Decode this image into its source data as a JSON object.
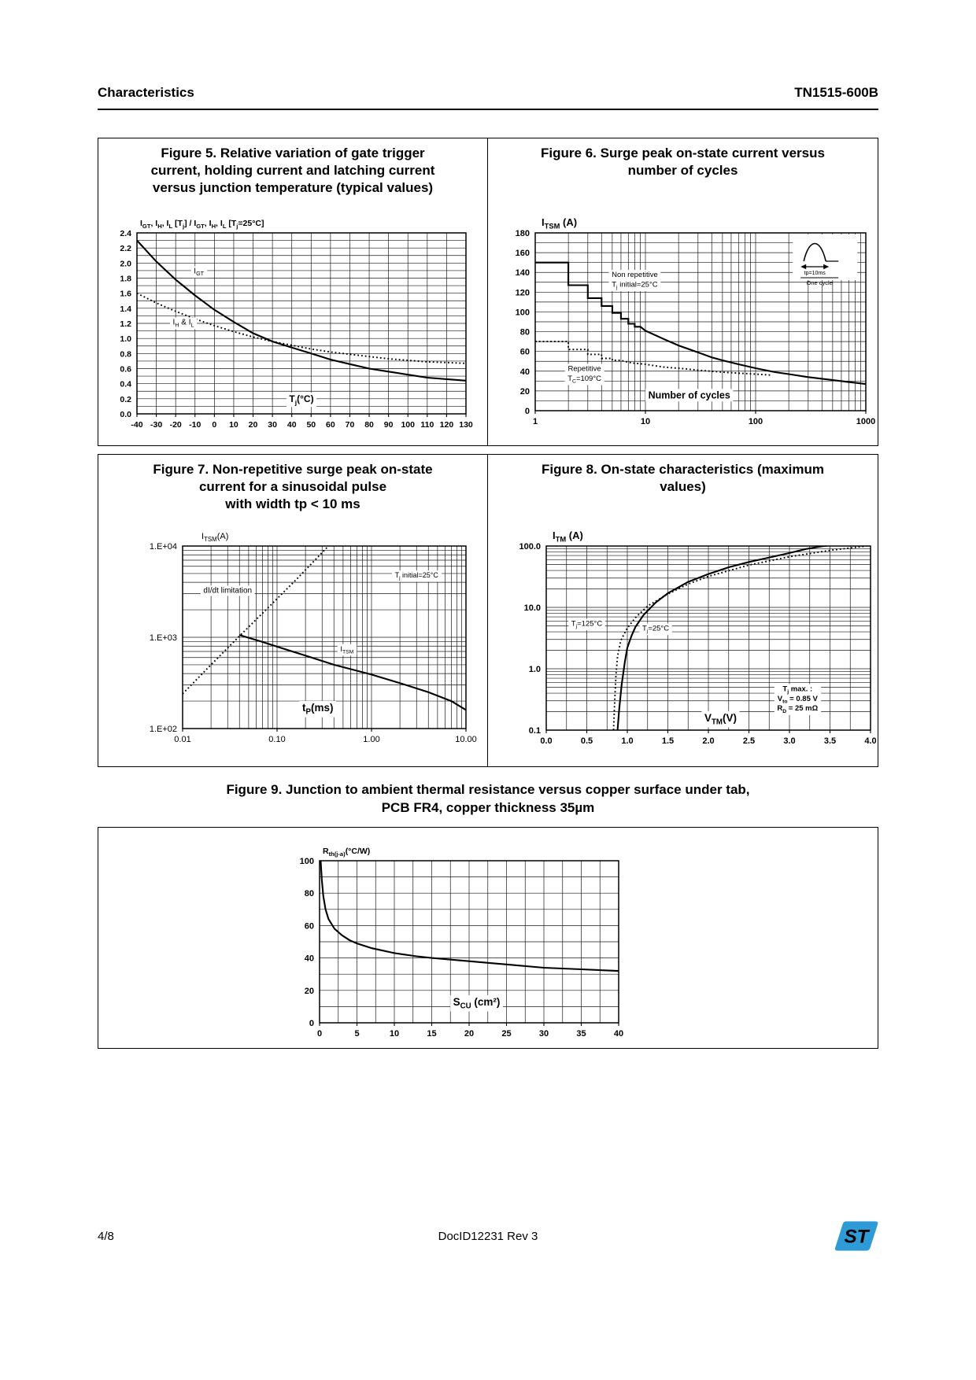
{
  "page": {
    "header": {
      "section": "Characteristics",
      "part_number": "TN1515-600B"
    },
    "footer": {
      "page_number": "4/8",
      "doc_id": "DocID12231 Rev 3",
      "logo_text": "ST",
      "logo_color": "#2E9BD6"
    }
  },
  "chart_data": [
    {
      "id": "fig5",
      "type": "line",
      "title": "Figure 5. Relative variation of gate trigger\ncurrent, holding current and latching current\nversus junction temperature (typical values)",
      "y_unit": "I_{GT}, I_{H}, I_{L} [T_{j}] / I_{GT}, I_{H}, I_{L} [T_{j}=25°C]",
      "x_axis": {
        "scale": "linear",
        "min": -40,
        "max": 130,
        "grid_step": 10,
        "ticks": [
          -40,
          -30,
          -20,
          -10,
          0,
          10,
          20,
          30,
          40,
          50,
          60,
          70,
          80,
          90,
          100,
          110,
          120,
          130
        ],
        "tick_labels": [
          "-40",
          "-30",
          "-20",
          "-10",
          "0",
          "10",
          "20",
          "30",
          "40",
          "50",
          "60",
          "70",
          "80",
          "90",
          "100",
          "110",
          "120",
          "130"
        ],
        "label": {
          "text": "T_{j}(°C)",
          "x": 45,
          "y": 0.2,
          "size": 12
        }
      },
      "y_axis": {
        "scale": "linear",
        "min": 0,
        "max": 2.4,
        "grid_step": 0.1,
        "ticks": [
          0,
          0.2,
          0.4,
          0.6,
          0.8,
          1.0,
          1.2,
          1.4,
          1.6,
          1.8,
          2.0,
          2.2,
          2.4
        ],
        "tick_labels": [
          "0.0",
          "0.2",
          "0.4",
          "0.6",
          "0.8",
          "1.0",
          "1.2",
          "1.4",
          "1.6",
          "1.8",
          "2.0",
          "2.2",
          "2.4"
        ]
      },
      "series": [
        {
          "name": "I_{GT}",
          "line": "solid",
          "points": [
            [
              -40,
              2.3
            ],
            [
              -30,
              2.02
            ],
            [
              -20,
              1.78
            ],
            [
              -10,
              1.57
            ],
            [
              0,
              1.38
            ],
            [
              10,
              1.22
            ],
            [
              20,
              1.07
            ],
            [
              30,
              0.96
            ],
            [
              40,
              0.88
            ],
            [
              50,
              0.8
            ],
            [
              60,
              0.72
            ],
            [
              70,
              0.66
            ],
            [
              80,
              0.6
            ],
            [
              90,
              0.56
            ],
            [
              100,
              0.52
            ],
            [
              110,
              0.48
            ],
            [
              120,
              0.46
            ],
            [
              130,
              0.44
            ]
          ]
        },
        {
          "name": "I_{H} & I_{L}",
          "line": "dotted",
          "points": [
            [
              -40,
              1.6
            ],
            [
              -30,
              1.47
            ],
            [
              -20,
              1.36
            ],
            [
              -10,
              1.26
            ],
            [
              0,
              1.17
            ],
            [
              10,
              1.09
            ],
            [
              20,
              1.02
            ],
            [
              30,
              0.96
            ],
            [
              40,
              0.91
            ],
            [
              50,
              0.86
            ],
            [
              60,
              0.82
            ],
            [
              70,
              0.79
            ],
            [
              80,
              0.76
            ],
            [
              90,
              0.73
            ],
            [
              100,
              0.71
            ],
            [
              110,
              0.69
            ],
            [
              120,
              0.68
            ],
            [
              130,
              0.67
            ]
          ]
        }
      ],
      "annotations": [
        {
          "x": -8,
          "y": 1.9,
          "lines": [
            "I_{GT}"
          ],
          "size": 10
        },
        {
          "x": -16,
          "y": 1.22,
          "lines": [
            "I_{H} & I_{L}"
          ],
          "size": 10
        }
      ]
    },
    {
      "id": "fig6",
      "type": "line",
      "title": "Figure 6. Surge peak on-state current versus\nnumber of cycles",
      "y_unit": "I_{TSM} (A)",
      "x_axis": {
        "scale": "log",
        "min": 1,
        "max": 1000,
        "ticks": [
          1,
          10,
          100,
          1000
        ],
        "tick_labels": [
          "1",
          "10",
          "100",
          "1000"
        ],
        "label": {
          "text": "Number of cycles",
          "x": 25,
          "y": 16,
          "size": 12.5
        }
      },
      "y_axis": {
        "scale": "linear",
        "min": 0,
        "max": 180,
        "grid_step": 10,
        "ticks": [
          0,
          20,
          40,
          60,
          80,
          100,
          120,
          140,
          160,
          180
        ],
        "tick_labels": [
          "0",
          "20",
          "40",
          "60",
          "80",
          "100",
          "120",
          "140",
          "160",
          "180"
        ]
      },
      "series": [
        {
          "name": "Non repetitive T_{j} initial=25°C",
          "line": "solid",
          "points": [
            [
              1,
              150
            ],
            [
              2,
              150
            ],
            [
              2,
              127
            ],
            [
              3,
              127
            ],
            [
              3,
              114
            ],
            [
              4,
              114
            ],
            [
              4,
              106
            ],
            [
              5,
              106
            ],
            [
              5,
              99
            ],
            [
              6,
              99
            ],
            [
              6,
              93
            ],
            [
              7,
              93
            ],
            [
              7,
              88
            ],
            [
              8,
              88
            ],
            [
              8,
              85
            ],
            [
              9,
              85
            ],
            [
              10,
              81
            ],
            [
              15,
              72
            ],
            [
              20,
              66
            ],
            [
              30,
              59
            ],
            [
              40,
              54
            ],
            [
              50,
              51
            ],
            [
              70,
              47
            ],
            [
              100,
              43
            ],
            [
              150,
              39
            ],
            [
              200,
              37
            ],
            [
              300,
              34
            ],
            [
              500,
              31
            ],
            [
              700,
              29
            ],
            [
              1000,
              27
            ]
          ]
        },
        {
          "name": "Repetitive T_{C}=109°C",
          "line": "dotted",
          "points": [
            [
              1,
              70
            ],
            [
              2,
              70
            ],
            [
              2,
              62
            ],
            [
              3,
              62
            ],
            [
              3,
              57
            ],
            [
              4,
              57
            ],
            [
              4,
              53
            ],
            [
              5,
              53
            ],
            [
              5,
              51
            ],
            [
              6,
              51
            ],
            [
              7,
              49
            ],
            [
              8,
              48
            ],
            [
              10,
              47
            ],
            [
              15,
              44
            ],
            [
              20,
              43
            ],
            [
              30,
              41
            ],
            [
              50,
              39
            ],
            [
              70,
              38
            ],
            [
              100,
              37
            ],
            [
              140,
              36
            ]
          ]
        }
      ],
      "annotations": [
        {
          "x": 8,
          "y": 133,
          "lines": [
            "Non repetitive",
            "T_{j} initial=25°C"
          ],
          "size": 9.5
        },
        {
          "x": 2.8,
          "y": 38,
          "lines": [
            "Repetitive",
            "T_{C}=109°C"
          ],
          "size": 9.5
        }
      ],
      "inset": {
        "pulse_label": "tp=10ms",
        "cycle_label": "One cycle"
      }
    },
    {
      "id": "fig7",
      "type": "line",
      "title": "Figure 7. Non-repetitive surge peak on-state\ncurrent for a sinusoidal pulse\nwith width tp < 10 ms",
      "y_unit": "I_{TSM}(A)",
      "x_axis": {
        "scale": "log",
        "min": 0.01,
        "max": 10,
        "ticks": [
          0.01,
          0.1,
          1,
          10
        ],
        "tick_labels": [
          "0.01",
          "0.10",
          "1.00",
          "10.00"
        ],
        "label": {
          "text": "t_{P}(ms)",
          "x": 0.27,
          "y": 170,
          "size": 13.5
        }
      },
      "y_axis": {
        "scale": "log",
        "min": 100,
        "max": 10000,
        "ticks": [
          100,
          1000,
          10000
        ],
        "tick_labels": [
          "1.E+02",
          "1.E+03",
          "1.E+04"
        ]
      },
      "series": [
        {
          "name": "dI/dt limitation",
          "line": "dotted",
          "points": [
            [
              0.01,
              240
            ],
            [
              0.02,
              500
            ],
            [
              0.04,
              1030
            ],
            [
              0.08,
              2100
            ],
            [
              0.16,
              4300
            ],
            [
              0.35,
              10000
            ],
            [
              0.45,
              13000
            ]
          ]
        },
        {
          "name": "I_{TSM}",
          "line": "solid",
          "points": [
            [
              0.04,
              1060
            ],
            [
              0.07,
              890
            ],
            [
              0.1,
              790
            ],
            [
              0.2,
              630
            ],
            [
              0.4,
              500
            ],
            [
              0.7,
              430
            ],
            [
              1,
              390
            ],
            [
              2,
              315
            ],
            [
              4,
              250
            ],
            [
              7,
              200
            ],
            [
              10,
              160
            ]
          ]
        }
      ],
      "annotations": [
        {
          "x": 0.03,
          "y": 3300,
          "lines": [
            "dI/dt limitation"
          ],
          "size": 10
        },
        {
          "x": 0.55,
          "y": 750,
          "lines": [
            "I_{TSM}"
          ],
          "size": 9.5
        },
        {
          "x": 3,
          "y": 4800,
          "lines": [
            "T_{j} initial=25°C"
          ],
          "size": 9
        }
      ]
    },
    {
      "id": "fig8",
      "type": "line",
      "title": "Figure 8. On-state characteristics (maximum\nvalues)",
      "y_unit": "I_{TM} (A)",
      "x_axis": {
        "scale": "linear",
        "min": 0,
        "max": 4,
        "grid_step": 0.25,
        "ticks": [
          0,
          0.5,
          1,
          1.5,
          2,
          2.5,
          3,
          3.5,
          4
        ],
        "tick_labels": [
          "0.0",
          "0.5",
          "1.0",
          "1.5",
          "2.0",
          "2.5",
          "3.0",
          "3.5",
          "4.0"
        ],
        "label": {
          "text": "V_{TM}(V)",
          "x": 2.15,
          "y": 0.16,
          "size": 13.5
        }
      },
      "y_axis": {
        "scale": "log",
        "min": 0.1,
        "max": 100,
        "ticks": [
          0.1,
          1,
          10,
          100
        ],
        "tick_labels": [
          "0.1",
          "1.0",
          "10.0",
          "100.0"
        ]
      },
      "series": [
        {
          "name": "T_{j}=25°C",
          "line": "solid",
          "points": [
            [
              0.88,
              0.1
            ],
            [
              0.9,
              0.22
            ],
            [
              0.93,
              0.55
            ],
            [
              0.97,
              1.3
            ],
            [
              1,
              2.2
            ],
            [
              1.05,
              3.4
            ],
            [
              1.1,
              4.8
            ],
            [
              1.2,
              7.5
            ],
            [
              1.35,
              12
            ],
            [
              1.5,
              17
            ],
            [
              1.75,
              26
            ],
            [
              2,
              35
            ],
            [
              2.25,
              45
            ],
            [
              2.5,
              55
            ],
            [
              2.75,
              65
            ],
            [
              3,
              77
            ],
            [
              3.2,
              89
            ],
            [
              3.4,
              99
            ],
            [
              3.6,
              105
            ]
          ]
        },
        {
          "name": "T_{j}=125°C",
          "line": "dotted",
          "points": [
            [
              0.83,
              0.1
            ],
            [
              0.845,
              0.3
            ],
            [
              0.86,
              0.8
            ],
            [
              0.88,
              1.6
            ],
            [
              0.92,
              2.9
            ],
            [
              1,
              4.6
            ],
            [
              1.1,
              6.8
            ],
            [
              1.25,
              10.5
            ],
            [
              1.5,
              16.5
            ],
            [
              1.75,
              24
            ],
            [
              2,
              32
            ],
            [
              2.5,
              49
            ],
            [
              3,
              67
            ],
            [
              3.5,
              85
            ],
            [
              3.9,
              98
            ],
            [
              4,
              103
            ]
          ]
        }
      ],
      "annotations": [
        {
          "x": 0.5,
          "y": 5.5,
          "lines": [
            "T_{j}=125°C"
          ],
          "size": 9.5
        },
        {
          "x": 1.35,
          "y": 4.6,
          "lines": [
            "T_{j}=25°C"
          ],
          "size": 9.5
        },
        {
          "x": 3.1,
          "y": 0.33,
          "lines": [
            "T_{j} max. :",
            "V_{to} = 0.85 V",
            "R_{D} = 25 mΩ"
          ],
          "size": 9.5,
          "bold": true
        }
      ]
    },
    {
      "id": "fig9",
      "type": "line",
      "title": "Figure 9. Junction to ambient thermal resistance versus copper surface under tab,\nPCB FR4, copper thickness 35µm",
      "y_unit": "R_{th(j-a)}(°C/W)",
      "x_axis": {
        "scale": "linear",
        "min": 0,
        "max": 40,
        "grid_step": 2.5,
        "ticks": [
          0,
          5,
          10,
          15,
          20,
          25,
          30,
          35,
          40
        ],
        "tick_labels": [
          "0",
          "5",
          "10",
          "15",
          "20",
          "25",
          "30",
          "35",
          "40"
        ],
        "label": {
          "text": "S_{CU} (cm²)",
          "x": 21,
          "y": 13,
          "size": 13.5
        }
      },
      "y_axis": {
        "scale": "linear",
        "min": 0,
        "max": 100,
        "grid_step": 10,
        "ticks": [
          0,
          20,
          40,
          60,
          80,
          100
        ],
        "tick_labels": [
          "0",
          "20",
          "40",
          "60",
          "80",
          "100"
        ]
      },
      "series": [
        {
          "name": "R_{th(j-a)}",
          "line": "solid",
          "points": [
            [
              0.15,
              100
            ],
            [
              0.3,
              88
            ],
            [
              0.5,
              78
            ],
            [
              0.8,
              70
            ],
            [
              1.2,
              64
            ],
            [
              2,
              58
            ],
            [
              3,
              54
            ],
            [
              4,
              51
            ],
            [
              5,
              49
            ],
            [
              7,
              46
            ],
            [
              10,
              43
            ],
            [
              13,
              41
            ],
            [
              15,
              40
            ],
            [
              20,
              38
            ],
            [
              25,
              36
            ],
            [
              30,
              34
            ],
            [
              35,
              33
            ],
            [
              40,
              32
            ]
          ]
        }
      ],
      "annotations": []
    }
  ]
}
